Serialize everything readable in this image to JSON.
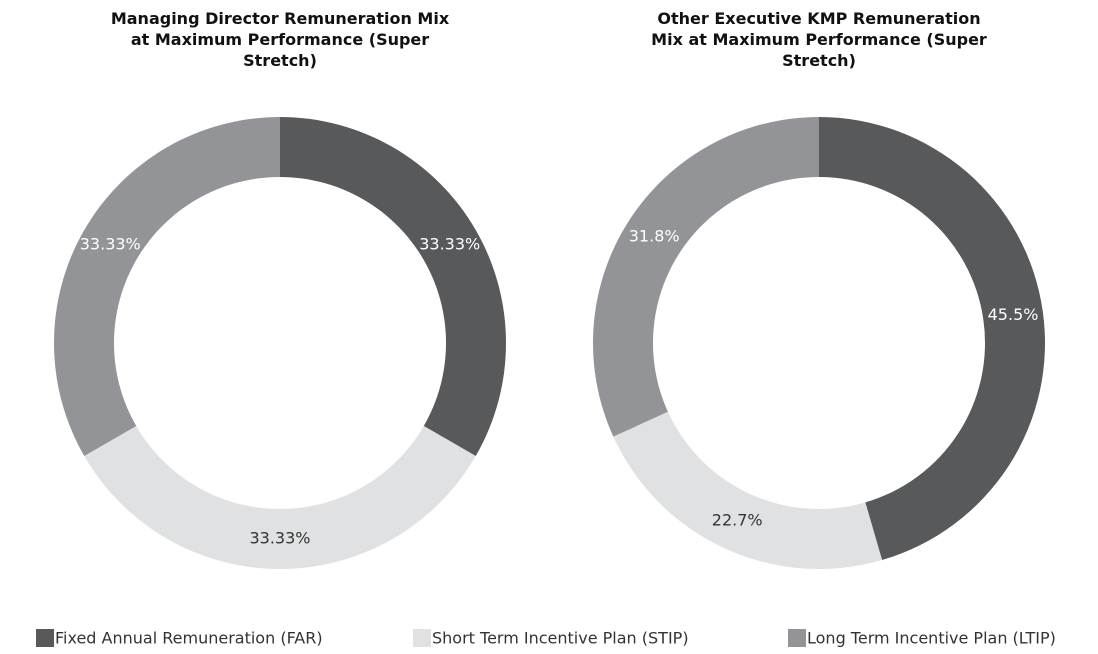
{
  "chart_data": [
    {
      "type": "pie",
      "title": "Managing Director Remuneration Mix at Maximum Performance (Super Stretch)",
      "categories": [
        "Fixed Annual Remuneration (FAR)",
        "Short Term Incentive Plan (STIP)",
        "Long Term Incentive Plan (LTIP)"
      ],
      "values": [
        33.33,
        33.33,
        33.33
      ],
      "value_labels": [
        "33.33%",
        "33.33%",
        "33.33%"
      ],
      "colors": [
        "#58595b",
        "#e0e1e2",
        "#929497"
      ],
      "legend": "bottom"
    },
    {
      "type": "pie",
      "title": "Other Executive KMP Remuneration Mix at Maximum Performance (Super Stretch)",
      "categories": [
        "Fixed Annual Remuneration (FAR)",
        "Short Term Incentive Plan (STIP)",
        "Long Term Incentive Plan (LTIP)"
      ],
      "values": [
        45.5,
        22.7,
        31.8
      ],
      "value_labels": [
        "45.5%",
        "22.7%",
        "31.8%"
      ],
      "colors": [
        "#58595b",
        "#e0e1e2",
        "#929497"
      ],
      "legend": "bottom"
    }
  ]
}
